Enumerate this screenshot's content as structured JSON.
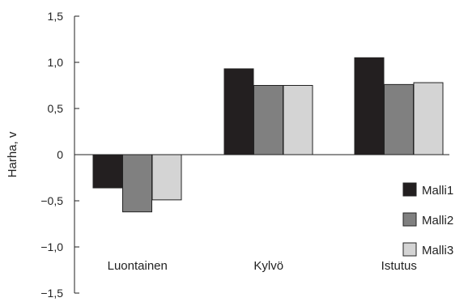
{
  "chart_data": {
    "type": "bar",
    "ylabel": "Harha, v",
    "ylim": [
      -1.5,
      1.5
    ],
    "yticks": [
      1.5,
      1.0,
      0.5,
      0,
      -0.5,
      -1.0,
      -1.5
    ],
    "ytick_labels": [
      "1,5",
      "1,0",
      "0,5",
      "0",
      "−0,5",
      "−1,0",
      "−1,5"
    ],
    "categories": [
      "Luontainen",
      "Kylvö",
      "Istutus"
    ],
    "series": [
      {
        "name": "Malli1",
        "color": "#231f20",
        "values": [
          -0.36,
          0.93,
          1.05
        ]
      },
      {
        "name": "Malli2",
        "color": "#808080",
        "values": [
          -0.62,
          0.75,
          0.76
        ]
      },
      {
        "name": "Malli3",
        "color": "#d4d4d4",
        "values": [
          -0.49,
          0.75,
          0.78
        ]
      }
    ],
    "legend_position": "right",
    "grid": false
  }
}
